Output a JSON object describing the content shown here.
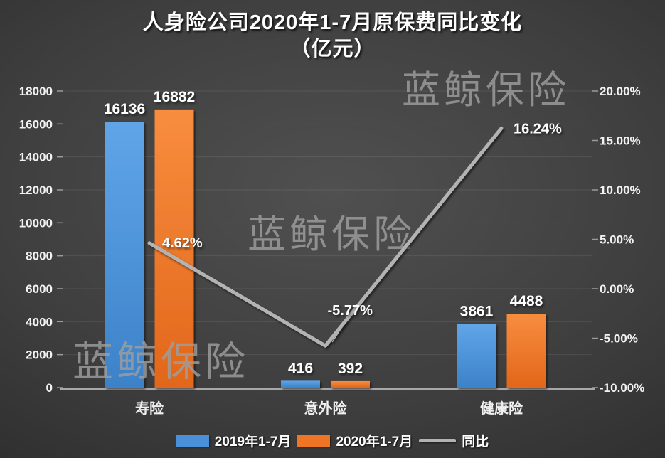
{
  "title": {
    "line1": "人身险公司2020年1-7月原保费同比变化",
    "line2": "（亿元）"
  },
  "watermark": {
    "text": "蓝鲸保险"
  },
  "legend": [
    {
      "label": "2019年1-7月",
      "type": "bar",
      "color": "#4a90d8"
    },
    {
      "label": "2020年1-7月",
      "type": "bar",
      "color": "#ee7426"
    },
    {
      "label": "同比",
      "type": "line",
      "color": "#b3b3b3"
    }
  ],
  "colors": {
    "background_center": "#505050",
    "background_edge": "#2a2a2a",
    "gridline": "rgba(255,255,255,0.09)",
    "axis_line": "#a8a8a8",
    "tick": "#9a9a9a",
    "text": "#f2f2f2",
    "watermark": "#9e9e9e"
  },
  "chart_data": {
    "type": "bar",
    "subtype": "grouped-bars-with-line-overlay",
    "title": "人身险公司2020年1-7月原保费同比变化（亿元）",
    "categories": [
      "寿险",
      "意外险",
      "健康险"
    ],
    "series": [
      {
        "name": "2019年1-7月",
        "type": "bar",
        "axis": "left",
        "values": [
          16136,
          416,
          3861
        ],
        "labels": [
          "16136",
          "416",
          "3861"
        ],
        "color": "#4a90d8",
        "color_top": "#60a5e8",
        "color_bottom": "#3c82c8"
      },
      {
        "name": "2020年1-7月",
        "type": "bar",
        "axis": "left",
        "values": [
          16882,
          392,
          4488
        ],
        "labels": [
          "16882",
          "392",
          "4488"
        ],
        "color": "#ee7426",
        "color_top": "#f88d3f",
        "color_bottom": "#e2661a"
      },
      {
        "name": "同比",
        "type": "line",
        "axis": "right",
        "values": [
          4.62,
          -5.77,
          16.24
        ],
        "labels": [
          "4.62%",
          "-5.77%",
          "16.24%"
        ],
        "color": "#b3b3b3"
      }
    ],
    "left_axis": {
      "min": 0,
      "max": 18000,
      "step": 2000,
      "tick_labels": [
        "0",
        "2000",
        "4000",
        "6000",
        "8000",
        "10000",
        "12000",
        "14000",
        "16000",
        "18000"
      ]
    },
    "right_axis": {
      "min": -10,
      "max": 20,
      "step": 5,
      "tick_labels": [
        "-10.00%",
        "-5.00%",
        "0.00%",
        "5.00%",
        "10.00%",
        "15.00%",
        "20.00%"
      ]
    },
    "grid": true,
    "legend_position": "bottom"
  }
}
